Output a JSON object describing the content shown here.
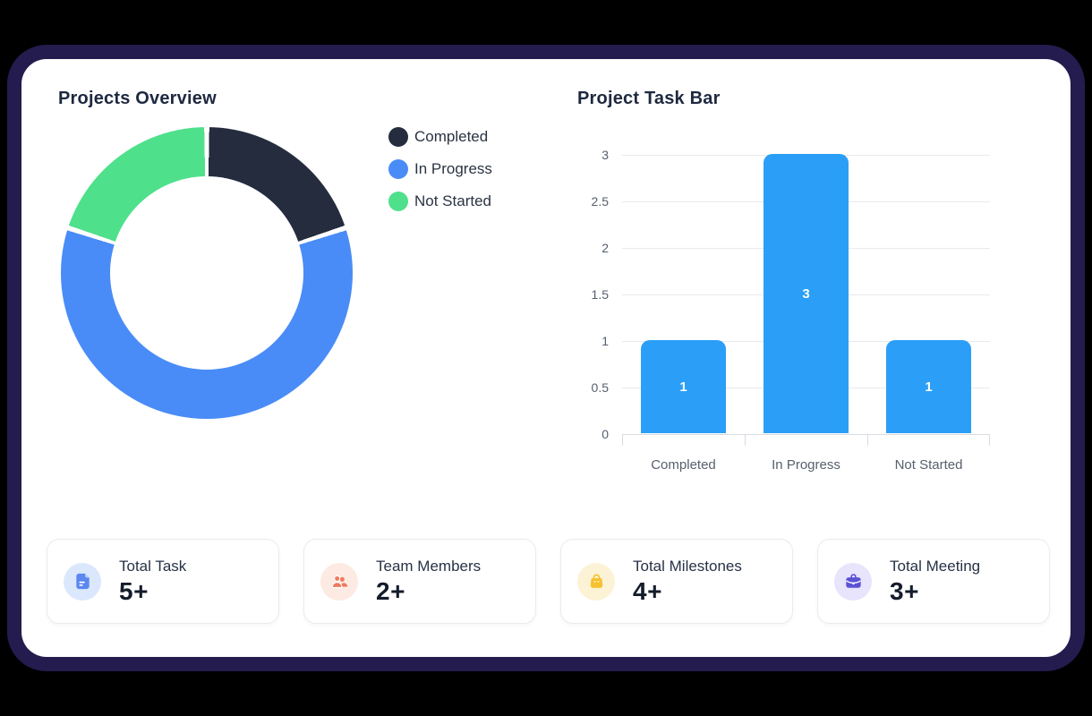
{
  "panel": {
    "canvas_color": "#000000",
    "frame_color": "#241c4e",
    "background": "#ffffff"
  },
  "donut_section": {
    "title": "Projects Overview",
    "legend": [
      {
        "label": "Completed",
        "color": "#242c3e"
      },
      {
        "label": "In Progress",
        "color": "#4a8cf7"
      },
      {
        "label": "Not Started",
        "color": "#4fe08b"
      }
    ]
  },
  "bar_section": {
    "title": "Project Task Bar"
  },
  "chart_data": [
    {
      "type": "pie",
      "variant": "donut",
      "title": "Projects Overview",
      "labels": [
        "Completed",
        "In Progress",
        "Not Started"
      ],
      "values": [
        1,
        3,
        1
      ],
      "colors": [
        "#242c3e",
        "#4a8cf7",
        "#4fe08b"
      ],
      "start_angle_deg": 0,
      "direction": "clockwise",
      "legend_position": "right"
    },
    {
      "type": "bar",
      "title": "Project Task Bar",
      "categories": [
        "Completed",
        "In Progress",
        "Not Started"
      ],
      "values": [
        1,
        3,
        1
      ],
      "value_labels": [
        "1",
        "3",
        "1"
      ],
      "bar_color": "#2b9ff7",
      "value_label_color": "#ffffff",
      "ylim": [
        0,
        3
      ],
      "yticks": [
        0,
        0.5,
        1,
        1.5,
        2,
        2.5,
        3
      ],
      "grid": true,
      "legend_position": "none"
    }
  ],
  "stat_cards": [
    {
      "label": "Total Task",
      "value": "5+",
      "icon": "document-icon",
      "icon_color": "#5c87ee",
      "icon_bg": "#dbe7fd"
    },
    {
      "label": "Team Members",
      "value": "2+",
      "icon": "people-icon",
      "icon_color": "#ef7a5d",
      "icon_bg": "#fdeae3"
    },
    {
      "label": "Total Milestones",
      "value": "4+",
      "icon": "bag-icon",
      "icon_color": "#f6c231",
      "icon_bg": "#fcf3d6"
    },
    {
      "label": "Total Meeting",
      "value": "3+",
      "icon": "briefcase-icon",
      "icon_color": "#5b52d7",
      "icon_bg": "#e7e4fb"
    }
  ]
}
